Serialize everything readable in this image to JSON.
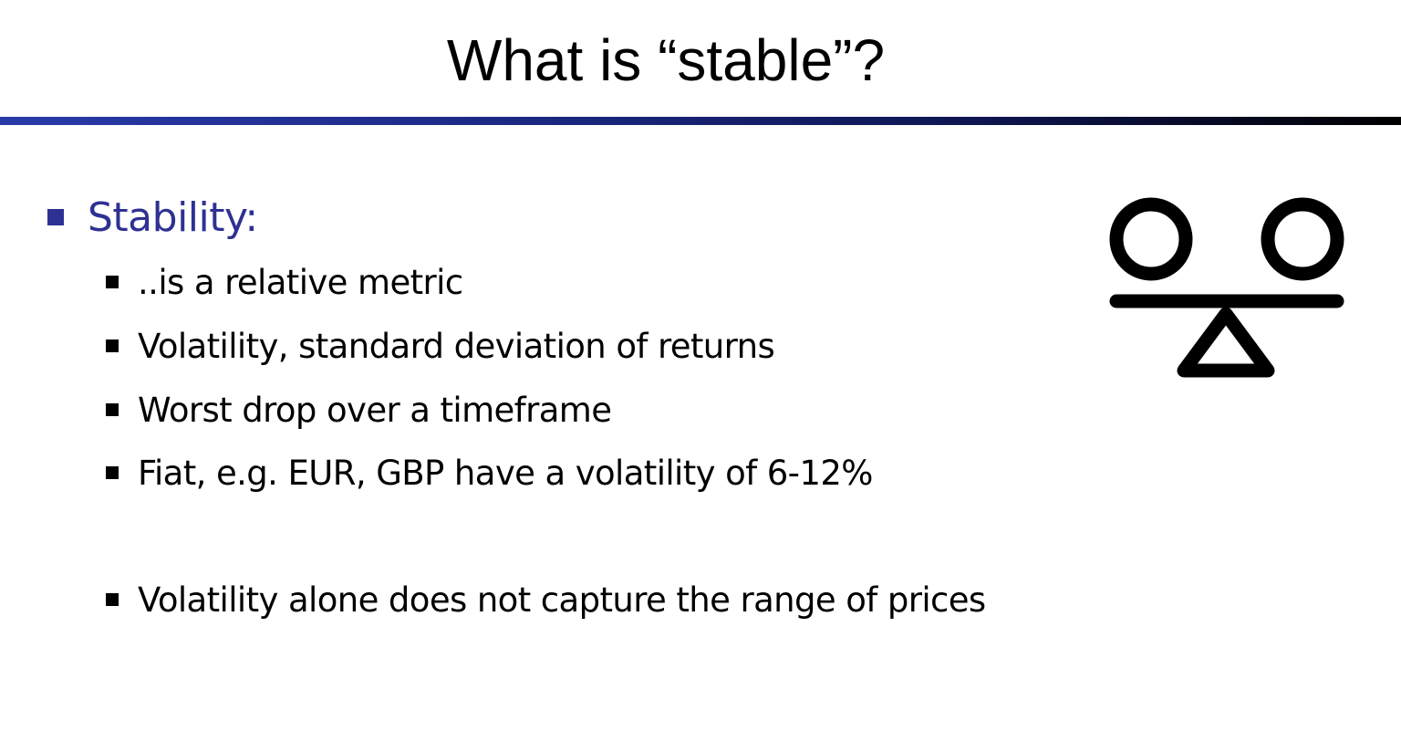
{
  "slide": {
    "title": "What is “stable”?",
    "heading": "Stability:",
    "bullets": [
      "..is a relative metric",
      "Volatility, standard deviation of returns",
      "Worst drop over a timeframe",
      "Fiat, e.g. EUR, GBP have a volatility of 6-12%",
      "Volatility alone does not capture the range of prices"
    ],
    "icon": "balance-scale-icon"
  },
  "colors": {
    "heading": "#2e3192",
    "title_rule": "#2a3aa8",
    "text": "#000000"
  }
}
